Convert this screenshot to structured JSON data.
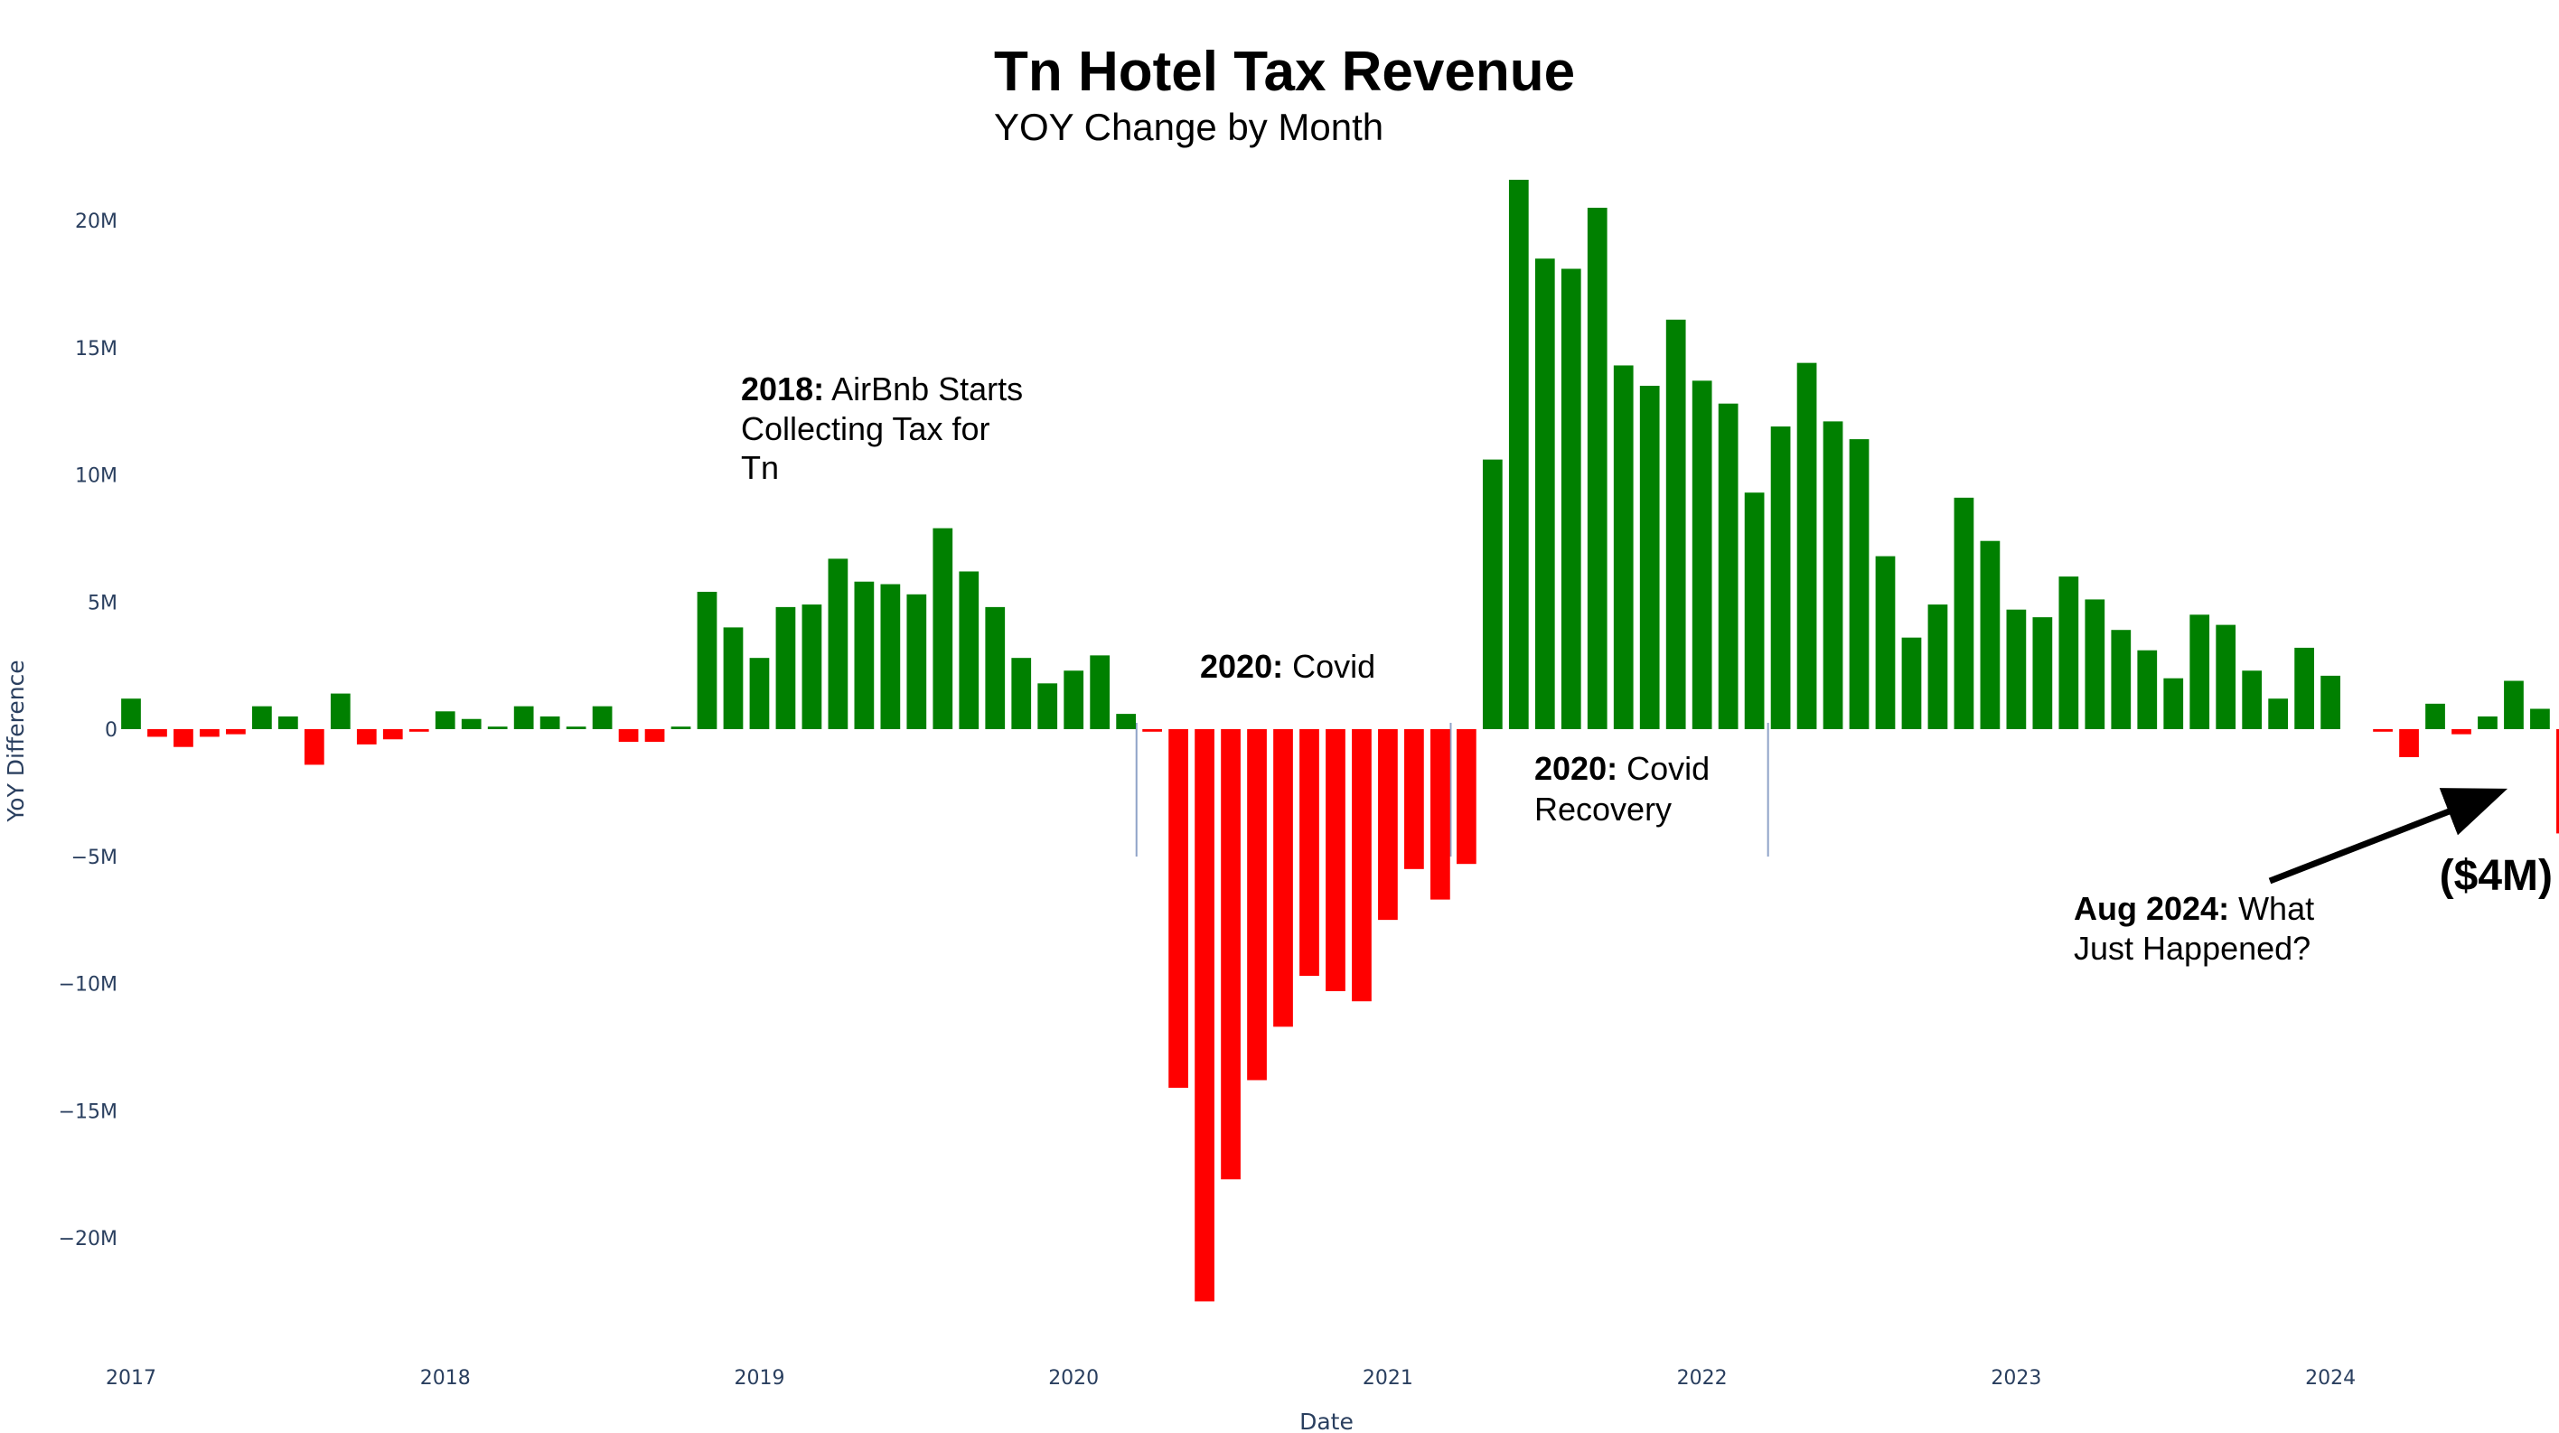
{
  "colors": {
    "positive": "#008000",
    "negative": "#ff0000",
    "axis_text": "#2a3f5f",
    "marker_line": "#8fa3c8"
  },
  "chart_data": {
    "type": "bar",
    "title": "Tn Hotel Tax Revenue",
    "subtitle": "YOY Change by Month",
    "xlabel": "Date",
    "ylabel": "YoY Difference",
    "ylim": [
      -24.5,
      23
    ],
    "y_unit": "M",
    "y_ticks": [
      20,
      15,
      10,
      5,
      0,
      -5,
      -10,
      -15,
      -20
    ],
    "y_tick_labels": [
      "20M",
      "15M",
      "10M",
      "5M",
      "0",
      "−5M",
      "−10M",
      "−15M",
      "−20M"
    ],
    "x_ticks": [
      2017,
      2018,
      2019,
      2020,
      2021,
      2022,
      2023,
      2024
    ],
    "x_tick_labels": [
      "2017",
      "2018",
      "2019",
      "2020",
      "2021",
      "2022",
      "2023",
      "2024"
    ],
    "x_range": [
      2017,
      2024.71
    ],
    "start_year": 2017,
    "values": [
      1.2,
      -0.3,
      -0.7,
      -0.3,
      -0.2,
      0.9,
      0.5,
      -1.4,
      1.4,
      -0.6,
      -0.4,
      -0.1,
      0.7,
      0.4,
      0.1,
      0.9,
      0.5,
      0.1,
      0.9,
      -0.5,
      -0.5,
      0.1,
      5.4,
      4.0,
      2.8,
      4.8,
      4.9,
      6.7,
      5.8,
      5.7,
      5.3,
      7.9,
      6.2,
      4.8,
      2.8,
      1.8,
      2.3,
      2.9,
      0.6,
      -0.1,
      -14.1,
      -22.5,
      -17.7,
      -13.8,
      -11.7,
      -9.7,
      -10.3,
      -10.7,
      -7.5,
      -5.5,
      -6.7,
      -5.3,
      10.6,
      21.6,
      18.5,
      18.1,
      20.5,
      14.3,
      13.5,
      16.1,
      13.7,
      12.8,
      9.3,
      11.9,
      14.4,
      12.1,
      11.4,
      6.8,
      3.6,
      4.9,
      9.1,
      7.4,
      4.7,
      4.4,
      6.0,
      5.1,
      3.9,
      3.1,
      2.0,
      4.5,
      4.1,
      2.3,
      1.2,
      3.2,
      2.1,
      0.0,
      -0.1,
      -1.1,
      1.0,
      -0.2,
      0.5,
      1.9,
      0.8,
      -4.1
    ]
  },
  "annotations": {
    "airbnb": {
      "bold": "2018:",
      "line1": " AirBnb Starts",
      "line2": "Collecting Tax for",
      "line3": "Tn"
    },
    "covid": {
      "bold": "2020:",
      "line1": " Covid"
    },
    "recovery": {
      "bold": "2020:",
      "line1": " Covid",
      "line2": "Recovery"
    },
    "aug2024": {
      "bold": "Aug 2024:",
      "line1": " What",
      "line2": "Just Happened?"
    },
    "callout": "($4M)"
  }
}
